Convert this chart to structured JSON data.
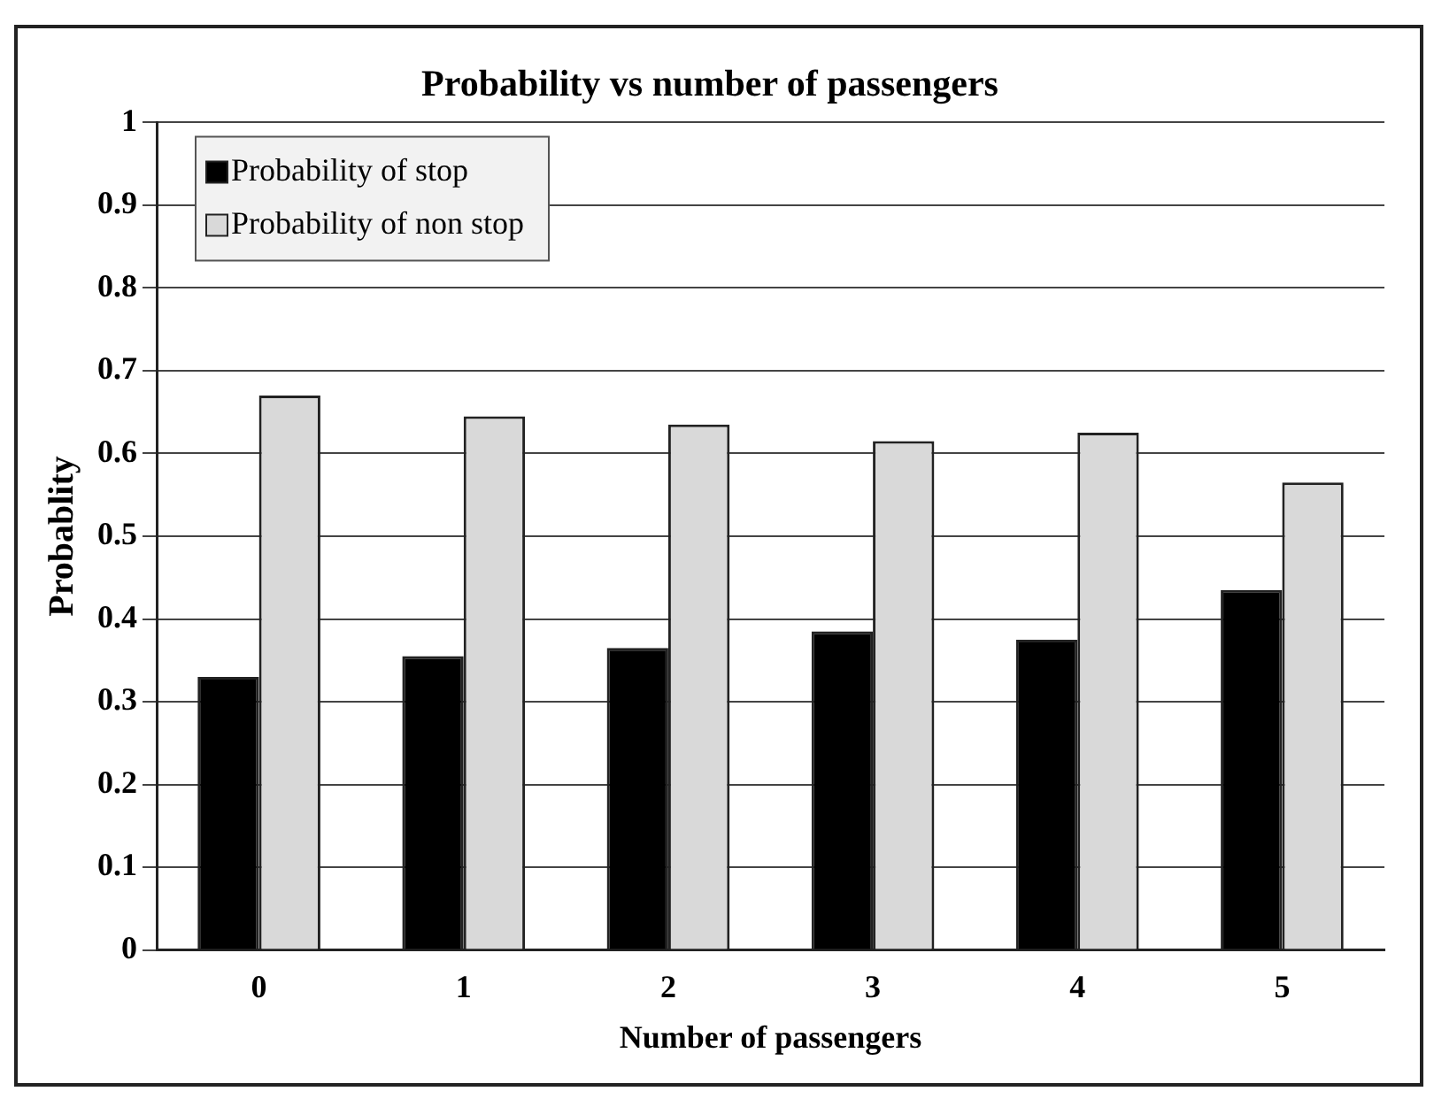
{
  "chart_data": {
    "type": "bar",
    "title": "Probability vs number of passengers",
    "xlabel": "Number of passengers",
    "ylabel": "Probablity",
    "categories": [
      "0",
      "1",
      "2",
      "3",
      "4",
      "5"
    ],
    "series": [
      {
        "name": "Probability of stop",
        "color": "#000000",
        "values": [
          0.33,
          0.355,
          0.365,
          0.385,
          0.375,
          0.435
        ]
      },
      {
        "name": "Probability of non stop",
        "color": "#d9d9d9",
        "values": [
          0.67,
          0.645,
          0.635,
          0.615,
          0.625,
          0.565
        ]
      }
    ],
    "ylim": [
      0,
      1
    ],
    "yticks": [
      0,
      0.1,
      0.2,
      0.3,
      0.4,
      0.5,
      0.6,
      0.7,
      0.8,
      0.9,
      1
    ],
    "grid": "y",
    "legend": "top left"
  }
}
